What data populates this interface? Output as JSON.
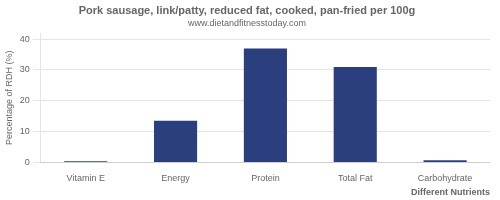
{
  "chart_data": {
    "type": "bar",
    "title": "Pork sausage, link/patty, reduced fat, cooked, pan-fried per 100g",
    "subtitle": "www.dietandfitnesstoday.com",
    "xlabel": "Different Nutrients",
    "ylabel": "Percentage of RDH (%)",
    "categories": [
      "Vitamin E",
      "Energy",
      "Protein",
      "Total Fat",
      "Carbohydrate"
    ],
    "values": [
      0.4,
      13.5,
      37.0,
      31.0,
      0.7
    ],
    "color": "#2B3F7E",
    "ylim": [
      0,
      42
    ],
    "yticks": [
      0,
      10,
      20,
      30,
      40
    ],
    "grid": true
  }
}
